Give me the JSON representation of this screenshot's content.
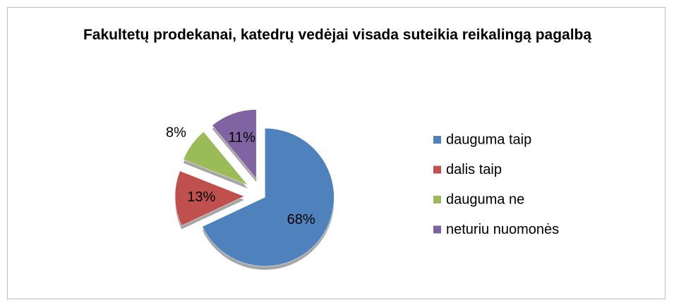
{
  "chart_data": {
    "type": "pie",
    "title": "Fakultetų prodekanai, katedrų vedėjai visada suteikia reikalingą pagalbą",
    "categories": [
      "dauguma taip",
      "dalis taip",
      "dauguma ne",
      "neturiu nuomonės"
    ],
    "values": [
      68,
      13,
      8,
      11
    ],
    "value_labels": [
      "68%",
      "13%",
      "8%",
      "11%"
    ],
    "colors": [
      "#4f81bd",
      "#c0504d",
      "#9bbb59",
      "#8064a2"
    ],
    "legend": "right"
  }
}
